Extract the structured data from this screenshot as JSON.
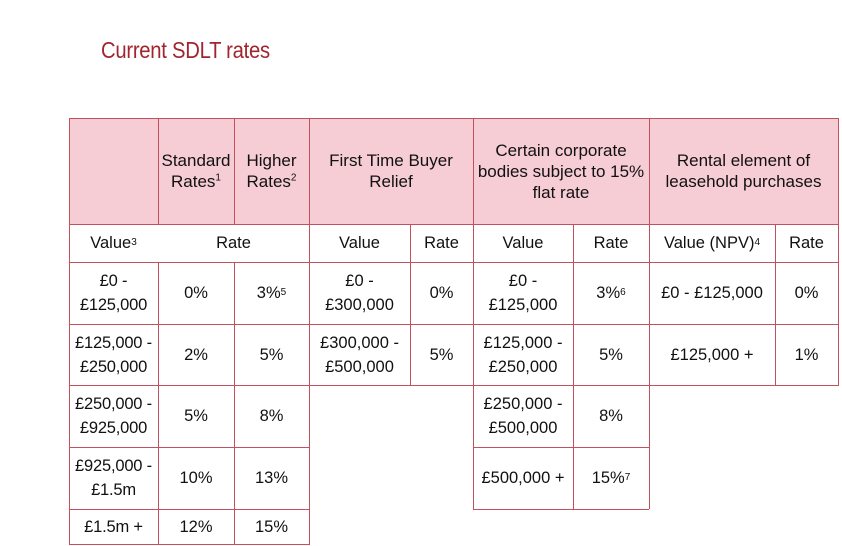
{
  "title": "Current SDLT rates",
  "headers": {
    "standard": {
      "line1": "Standard",
      "line2": "Rates",
      "note": "1"
    },
    "higher": {
      "line1": "Higher",
      "line2": "Rates",
      "note": "2"
    },
    "ftb": {
      "line1": "First Time Buyer",
      "line2": "Relief"
    },
    "corporate": {
      "line1": "Certain corporate",
      "line2": "bodies subject to 15%",
      "line3": "flat rate"
    },
    "rental": {
      "line1": "Rental element of",
      "line2": "leasehold purchases"
    }
  },
  "subheaders": {
    "value": "Value",
    "value_note": "3",
    "rate": "Rate",
    "ftb_value": "Value",
    "ftb_rate": "Rate",
    "corp_value": "Value",
    "corp_rate": "Rate",
    "rent_value": "Value (NPV)",
    "rent_value_note": "4",
    "rent_rate": "Rate"
  },
  "main_rows": [
    {
      "value1": "£0 -",
      "value2": "£125,000",
      "standard": "0%",
      "higher": "3%",
      "higher_note": "5"
    },
    {
      "value1": "£125,000 -",
      "value2": "£250,000",
      "standard": "2%",
      "higher": "5%"
    },
    {
      "value1": "£250,000 -",
      "value2": "£925,000",
      "standard": "5%",
      "higher": "8%"
    },
    {
      "value1": "£925,000 -",
      "value2": "£1.5m",
      "standard": "10%",
      "higher": "13%"
    },
    {
      "value1": "£1.5m +",
      "value2": "",
      "standard": "12%",
      "higher": "15%"
    }
  ],
  "ftb_rows": [
    {
      "value1": "£0 -",
      "value2": "£300,000",
      "rate": "0%"
    },
    {
      "value1": "£300,000 -",
      "value2": "£500,000",
      "rate": "5%"
    }
  ],
  "corp_rows": [
    {
      "value1": "£0 -",
      "value2": "£125,000",
      "rate": "3%",
      "note": "6"
    },
    {
      "value1": "£125,000 -",
      "value2": "£250,000",
      "rate": "5%"
    },
    {
      "value1": "£250,000 -",
      "value2": "£500,000",
      "rate": "8%"
    },
    {
      "value1": "£500,000 +",
      "value2": "",
      "rate": "15%",
      "note": "7"
    }
  ],
  "rent_rows": [
    {
      "value": "£0 - £125,000",
      "rate": "0%"
    },
    {
      "value": "£125,000 +",
      "rate": "1%"
    }
  ]
}
